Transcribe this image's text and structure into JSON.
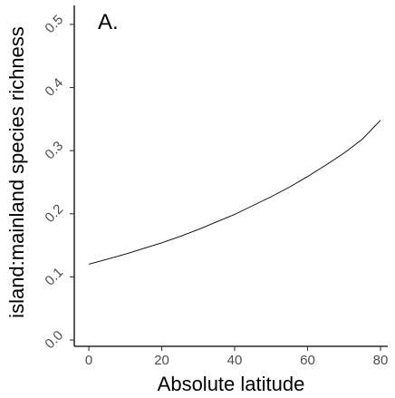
{
  "chart_data": {
    "type": "line",
    "panel_label": "A.",
    "xlabel": "Absolute latitude",
    "ylabel": "island:mainland species richness",
    "xlim": [
      -4,
      82
    ],
    "ylim": [
      -0.01,
      0.53
    ],
    "x_ticks": [
      0,
      20,
      40,
      60,
      80
    ],
    "x_tick_labels": [
      "0",
      "20",
      "40",
      "60",
      "80"
    ],
    "y_ticks": [
      0.0,
      0.1,
      0.2,
      0.3,
      0.4,
      0.5
    ],
    "y_tick_labels": [
      "0.0",
      "0.1",
      "0.2",
      "0.3",
      "0.4",
      "0.5"
    ],
    "grid": false,
    "line_color": "#000000",
    "series": [
      {
        "x": [
          0,
          5,
          10,
          15,
          20,
          25,
          30,
          35,
          40,
          45,
          50,
          55,
          60,
          65,
          70,
          75,
          80
        ],
        "y": [
          0.12,
          0.128,
          0.136,
          0.145,
          0.154,
          0.164,
          0.175,
          0.187,
          0.199,
          0.213,
          0.227,
          0.242,
          0.259,
          0.277,
          0.296,
          0.318,
          0.348
        ]
      }
    ]
  }
}
